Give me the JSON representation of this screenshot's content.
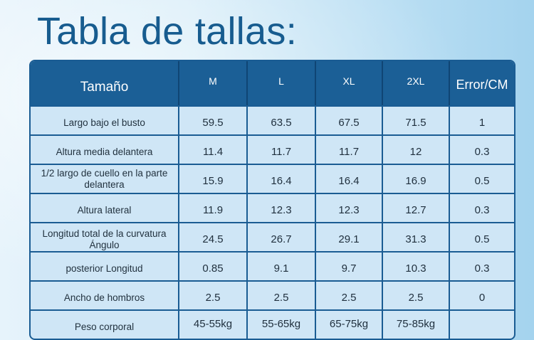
{
  "title": "Tabla de tallas:",
  "table": {
    "headers": [
      "Tamaño",
      "M",
      "L",
      "XL",
      "2XL",
      "Error/CM"
    ],
    "rows": [
      [
        "Largo bajo el busto",
        "59.5",
        "63.5",
        "67.5",
        "71.5",
        "1"
      ],
      [
        "Altura media delantera",
        "11.4",
        "11.7",
        "11.7",
        "12",
        "0.3"
      ],
      [
        "1/2 largo de cuello en la parte delantera",
        "15.9",
        "16.4",
        "16.4",
        "16.9",
        "0.5"
      ],
      [
        "Altura lateral",
        "11.9",
        "12.3",
        "12.3",
        "12.7",
        "0.3"
      ],
      [
        "Longitud total de la curvatura Ángulo",
        "24.5",
        "26.7",
        "29.1",
        "31.3",
        "0.5"
      ],
      [
        "posterior Longitud",
        "0.85",
        "9.1",
        "9.7",
        "10.3",
        "0.3"
      ],
      [
        "Ancho de hombros",
        "2.5",
        "2.5",
        "2.5",
        "2.5",
        "0"
      ],
      [
        "Peso corporal",
        "45-55kg",
        "55-65kg",
        "65-75kg",
        "75-85kg",
        ""
      ]
    ]
  },
  "colors": {
    "title": "#175c8f",
    "header_bg": "#1b5f96",
    "cell_bg": "#cfe6f6",
    "border": "#1a5c93"
  }
}
